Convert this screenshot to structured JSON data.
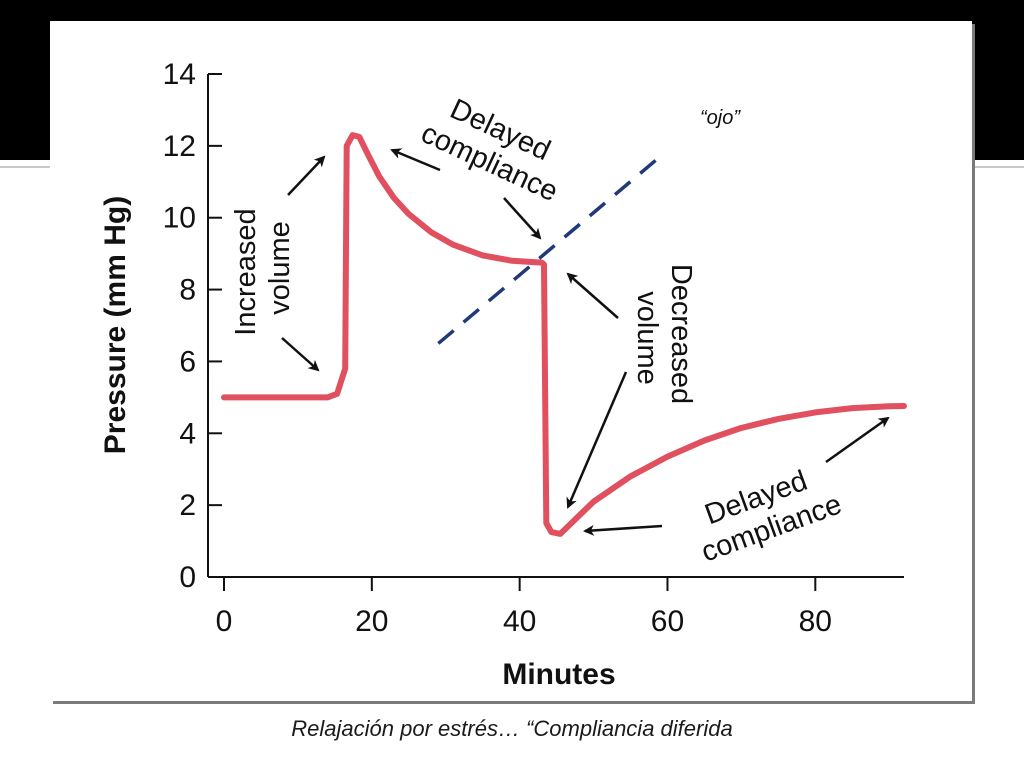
{
  "chart_data": {
    "type": "line",
    "xlabel": "Minutes",
    "ylabel": "Pressure (mm Hg)",
    "xlim": [
      0,
      92
    ],
    "ylim": [
      0,
      14
    ],
    "x_ticks": [
      0,
      20,
      40,
      60,
      80
    ],
    "y_ticks": [
      0,
      2,
      4,
      6,
      8,
      10,
      12,
      14
    ],
    "series": [
      {
        "color": "#e0505e",
        "points": [
          [
            0,
            5.0
          ],
          [
            14,
            5.0
          ],
          [
            15.3,
            5.1
          ],
          [
            16.4,
            5.8
          ],
          [
            16.6,
            12.0
          ],
          [
            17.4,
            12.3
          ],
          [
            18.3,
            12.25
          ],
          [
            19.5,
            11.75
          ],
          [
            21,
            11.15
          ],
          [
            23,
            10.55
          ],
          [
            25,
            10.1
          ],
          [
            28,
            9.6
          ],
          [
            31,
            9.25
          ],
          [
            35,
            8.95
          ],
          [
            39,
            8.8
          ],
          [
            43,
            8.75
          ],
          [
            43.3,
            8.7
          ],
          [
            43.6,
            1.5
          ],
          [
            44.3,
            1.25
          ],
          [
            45.5,
            1.2
          ],
          [
            47,
            1.5
          ],
          [
            50,
            2.1
          ],
          [
            55,
            2.8
          ],
          [
            60,
            3.35
          ],
          [
            65,
            3.8
          ],
          [
            70,
            4.15
          ],
          [
            75,
            4.4
          ],
          [
            80,
            4.58
          ],
          [
            85,
            4.7
          ],
          [
            90,
            4.75
          ],
          [
            92,
            4.76
          ]
        ]
      }
    ],
    "annotations": [
      {
        "text": [
          "Increased",
          "volume"
        ],
        "rotation": -90
      },
      {
        "text": [
          "Delayed",
          "compliance"
        ],
        "rotation": 25
      },
      {
        "text": [
          "Decreased",
          "volume"
        ],
        "rotation": 90
      },
      {
        "text": [
          "Delayed",
          "compliance"
        ],
        "rotation": -20
      }
    ],
    "note": "“ojo”",
    "dashed_line": {
      "from": [
        29,
        6.5
      ],
      "to": [
        59,
        11.7
      ],
      "color": "#1f3a78"
    }
  },
  "caption": "Relajación por estrés… “Compliancia diferida",
  "colors": {
    "background": "#ffffff",
    "band": "#000000",
    "curve": "#e0505e",
    "dashes": "#1f3a78"
  }
}
